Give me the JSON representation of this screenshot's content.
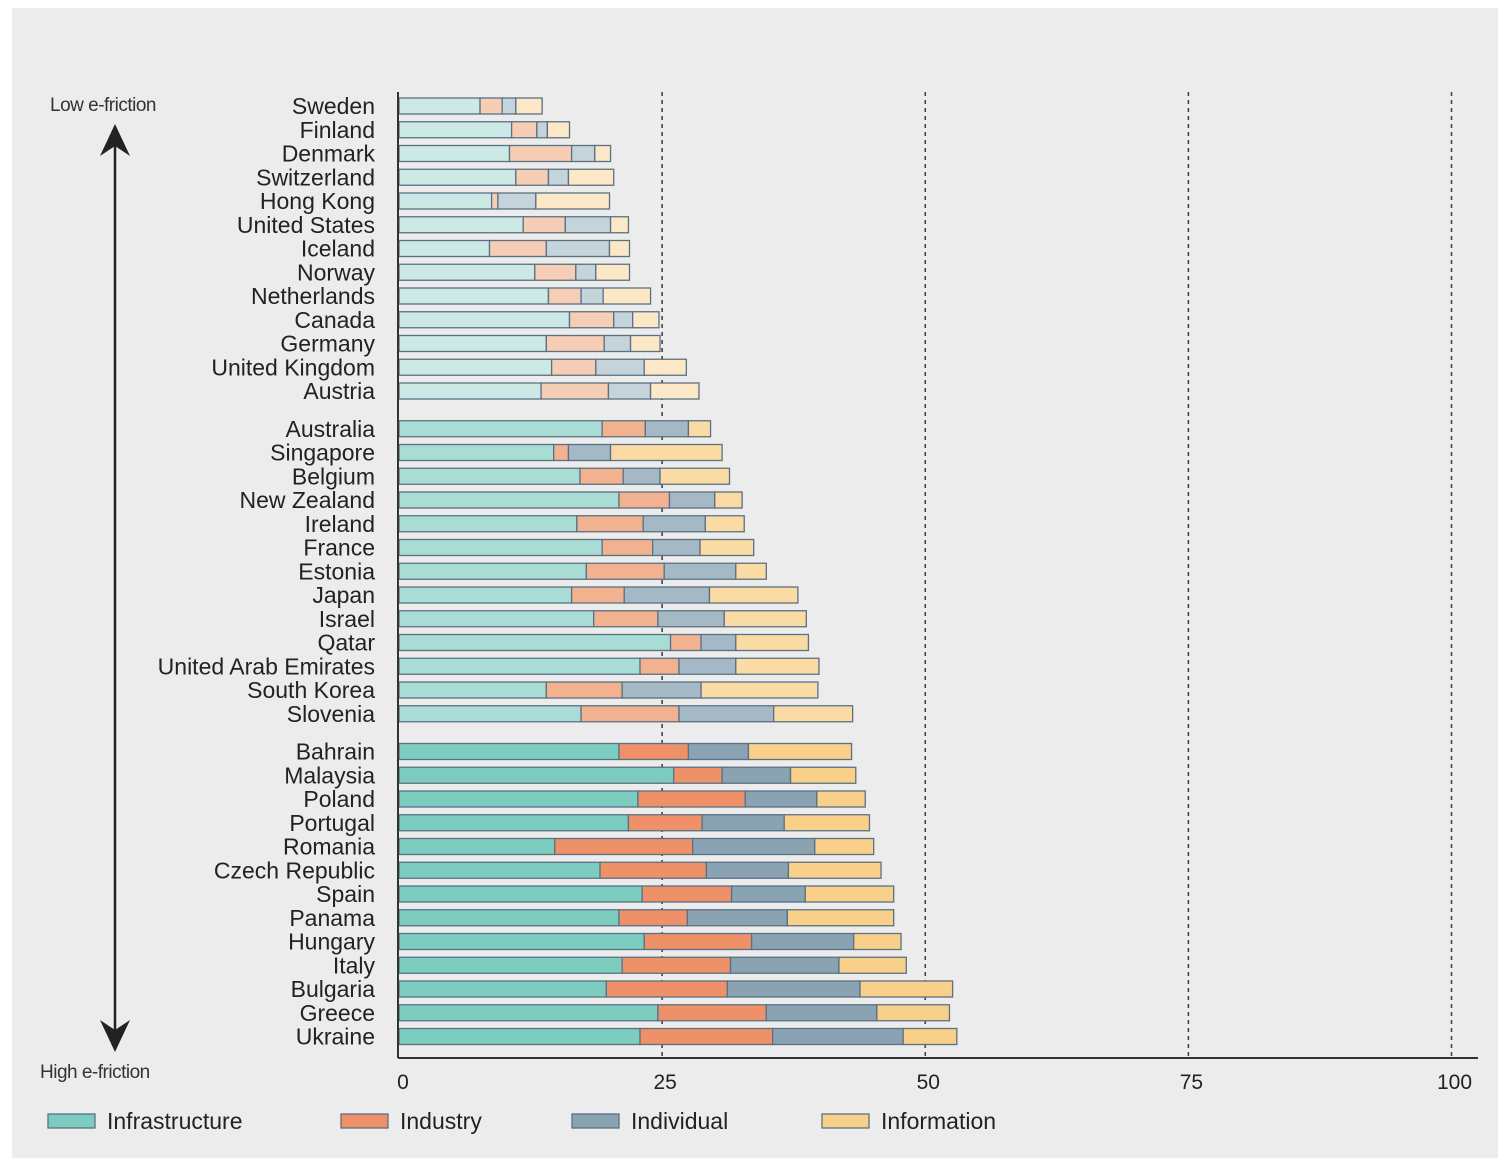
{
  "chart_data": {
    "type": "bar",
    "stacked": true,
    "orientation": "horizontal",
    "title": "",
    "xlabel": "",
    "ylabel": "",
    "xlim": [
      0,
      100
    ],
    "x_ticks": [
      0,
      25,
      50,
      75,
      100
    ],
    "gridlines": "dashed vertical at 25, 50, 75, 100",
    "legend_position": "bottom",
    "axis_annotations": {
      "top": "Low e-friction",
      "bottom": "High e-friction"
    },
    "groups": [
      {
        "rows": 13,
        "shade": "light"
      },
      {
        "rows": 13,
        "shade": "medium"
      },
      {
        "rows": 13,
        "shade": "full"
      }
    ],
    "colors": {
      "Infrastructure": [
        "#cce9e6",
        "#a9dcd5",
        "#7ccdc0"
      ],
      "Industry": [
        "#f6cdb5",
        "#f3b28f",
        "#ee9068"
      ],
      "Individual": [
        "#c5d3db",
        "#a4b8c5",
        "#8aa3b3"
      ],
      "Information": [
        "#fce8c6",
        "#fbdba4",
        "#f9d08a"
      ]
    },
    "categories": [
      "Sweden",
      "Finland",
      "Denmark",
      "Switzerland",
      "Hong Kong",
      "United States",
      "Iceland",
      "Norway",
      "Netherlands",
      "Canada",
      "Germany",
      "United Kingdom",
      "Austria",
      "Australia",
      "Singapore",
      "Belgium",
      "New Zealand",
      "Ireland",
      "France",
      "Estonia",
      "Japan",
      "Israel",
      "Qatar",
      "United Arab Emirates",
      "South Korea",
      "Slovenia",
      "Bahrain",
      "Malaysia",
      "Poland",
      "Portugal",
      "Romania",
      "Czech Republic",
      "Spain",
      "Panama",
      "Hungary",
      "Italy",
      "Bulgaria",
      "Greece",
      "Ukraine"
    ],
    "series": [
      {
        "name": "Infrastructure",
        "values": [
          7.7,
          10.7,
          10.5,
          11.1,
          8.8,
          11.8,
          8.6,
          12.9,
          14.2,
          16.2,
          14.0,
          14.5,
          13.5,
          19.3,
          14.7,
          17.2,
          20.9,
          16.9,
          19.3,
          17.8,
          16.4,
          18.5,
          25.8,
          22.9,
          14.0,
          17.3,
          20.9,
          26.1,
          22.7,
          21.8,
          14.8,
          19.1,
          23.1,
          20.9,
          23.3,
          21.2,
          19.7,
          24.6,
          22.9
        ]
      },
      {
        "name": "Industry",
        "values": [
          2.1,
          2.4,
          5.9,
          3.1,
          0.6,
          4.0,
          5.4,
          3.9,
          3.1,
          4.2,
          5.5,
          4.2,
          6.4,
          4.1,
          1.4,
          4.1,
          4.8,
          6.3,
          4.8,
          7.4,
          5.0,
          6.1,
          2.9,
          3.7,
          7.2,
          9.3,
          6.6,
          4.6,
          10.2,
          7.0,
          13.1,
          10.1,
          8.5,
          6.5,
          10.2,
          10.3,
          11.5,
          10.3,
          12.6
        ]
      },
      {
        "name": "Individual",
        "values": [
          1.3,
          1.0,
          2.2,
          1.9,
          3.6,
          4.3,
          6.0,
          1.9,
          2.1,
          1.8,
          2.5,
          4.6,
          4.0,
          4.1,
          4.0,
          3.5,
          4.3,
          5.9,
          4.5,
          6.8,
          8.1,
          6.3,
          3.3,
          5.4,
          7.5,
          9.0,
          5.7,
          6.5,
          6.8,
          7.8,
          11.6,
          7.8,
          7.0,
          9.5,
          9.7,
          10.3,
          12.6,
          10.5,
          12.4
        ]
      },
      {
        "name": "Information",
        "values": [
          2.5,
          2.1,
          1.5,
          4.3,
          7.0,
          1.7,
          1.9,
          3.2,
          4.5,
          2.5,
          2.8,
          4.0,
          4.6,
          2.1,
          10.6,
          6.6,
          2.6,
          3.7,
          5.1,
          2.9,
          8.4,
          7.8,
          6.9,
          7.9,
          11.1,
          7.5,
          9.8,
          6.2,
          4.6,
          8.1,
          5.6,
          8.8,
          8.4,
          10.1,
          4.5,
          6.4,
          8.8,
          6.9,
          5.1
        ]
      }
    ]
  }
}
